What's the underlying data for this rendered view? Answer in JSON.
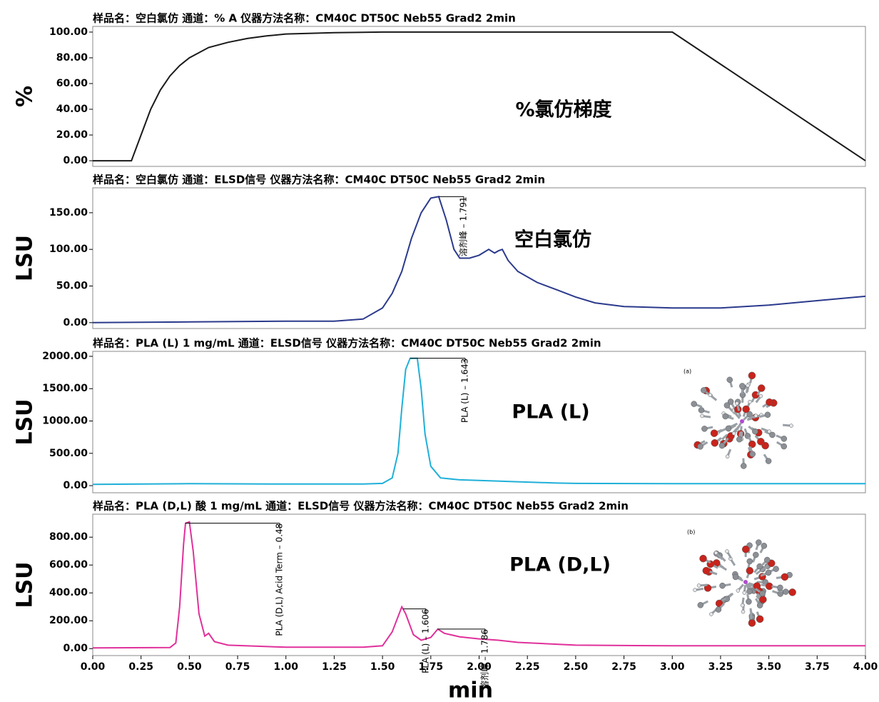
{
  "chart_data": [
    {
      "type": "line",
      "title": "样品名：空白氯仿 通道：% A 仪器方法名称：CM40C DT50C Neb55 Grad2 2min",
      "ylabel": "%",
      "label": "%氯仿梯度",
      "color": "#1a1a1a",
      "xlim": [
        0,
        4
      ],
      "ylim": [
        -4.4,
        104.4
      ],
      "yticks": [
        {
          "value": 0,
          "label": "0.00"
        },
        {
          "value": 20,
          "label": "20.00"
        },
        {
          "value": 40,
          "label": "40.00"
        },
        {
          "value": 60,
          "label": "60.00"
        },
        {
          "value": 80,
          "label": "80.00"
        },
        {
          "value": 100,
          "label": "100.00"
        }
      ],
      "x": [
        0,
        0.2,
        0.25,
        0.3,
        0.35,
        0.4,
        0.45,
        0.5,
        0.6,
        0.7,
        0.8,
        0.9,
        1.0,
        1.25,
        1.5,
        3.0,
        4.0
      ],
      "values": [
        0,
        0,
        20,
        40,
        55,
        66,
        74,
        80,
        88,
        92,
        95,
        97,
        98.5,
        99.5,
        100,
        100,
        0
      ]
    },
    {
      "type": "line",
      "title": "样品名：空白氯仿 通道：ELSD信号 仪器方法名称：CM40C DT50C Neb55 Grad2 2min",
      "ylabel": "LSU",
      "label": "空白氯仿",
      "color": "#2b3a8c",
      "xlim": [
        0,
        4
      ],
      "ylim": [
        -8,
        184
      ],
      "yticks": [
        {
          "value": 0,
          "label": "0.00"
        },
        {
          "value": 50,
          "label": "50.00"
        },
        {
          "value": 100,
          "label": "100.00"
        },
        {
          "value": 150,
          "label": "150.00"
        }
      ],
      "x": [
        0,
        0.5,
        1.0,
        1.25,
        1.4,
        1.5,
        1.55,
        1.6,
        1.65,
        1.7,
        1.75,
        1.791,
        1.83,
        1.87,
        1.9,
        1.95,
        2.0,
        2.05,
        2.08,
        2.1,
        2.12,
        2.15,
        2.2,
        2.3,
        2.4,
        2.5,
        2.6,
        2.75,
        3.0,
        3.25,
        3.5,
        3.75,
        4.0
      ],
      "values": [
        0,
        1,
        2,
        2,
        5,
        20,
        40,
        70,
        115,
        150,
        170,
        172,
        140,
        100,
        88,
        88,
        92,
        100,
        95,
        98,
        100,
        85,
        70,
        55,
        45,
        35,
        27,
        22,
        20,
        20,
        24,
        30,
        36
      ],
      "annotations": [
        {
          "text": "溶剂峰 – 1.791",
          "x": 1.791
        }
      ]
    },
    {
      "type": "line",
      "title": "样品名：PLA (L) 1 mg/mL 通道：ELSD信号 仪器方法名称：CM40C DT50C Neb55 Grad2 2min",
      "ylabel": "LSU",
      "label": "PLA (L)",
      "inset_label": "(a)",
      "color": "#1fb0d8",
      "xlim": [
        0,
        4
      ],
      "ylim": [
        -110,
        2077
      ],
      "yticks": [
        {
          "value": 0,
          "label": "0.00"
        },
        {
          "value": 500,
          "label": "500.00"
        },
        {
          "value": 1000,
          "label": "1000.00"
        },
        {
          "value": 1500,
          "label": "1500.00"
        },
        {
          "value": 2000,
          "label": "2000.00"
        }
      ],
      "x": [
        0,
        0.5,
        1.0,
        1.4,
        1.5,
        1.55,
        1.58,
        1.6,
        1.62,
        1.643,
        1.68,
        1.7,
        1.72,
        1.75,
        1.8,
        1.9,
        2.0,
        2.2,
        2.4,
        2.5,
        3.0,
        4.0
      ],
      "values": [
        20,
        30,
        25,
        25,
        35,
        120,
        500,
        1200,
        1800,
        1970,
        1970,
        1500,
        800,
        300,
        120,
        90,
        80,
        60,
        40,
        35,
        30,
        30
      ],
      "annotations": [
        {
          "text": "PLA (L) – 1.643",
          "x": 1.643
        }
      ]
    },
    {
      "type": "line",
      "title": "样品名：PLA (D,L) 酸 1 mg/mL 通道：ELSD信号 仪器方法名称：CM40C DT50C Neb55 Grad2 2min",
      "ylabel": "LSU",
      "label": "PLA (D,L)",
      "inset_label": "(b)",
      "color": "#e0309a",
      "xlim": [
        0,
        4
      ],
      "ylim": [
        -50,
        965
      ],
      "xlabel": "min",
      "yticks": [
        {
          "value": 0,
          "label": "0.00"
        },
        {
          "value": 200,
          "label": "200.00"
        },
        {
          "value": 400,
          "label": "400.00"
        },
        {
          "value": 600,
          "label": "600.00"
        },
        {
          "value": 800,
          "label": "800.00"
        }
      ],
      "xticks": [
        {
          "value": 0,
          "label": "0.00"
        },
        {
          "value": 0.25,
          "label": "0.25"
        },
        {
          "value": 0.5,
          "label": "0.50"
        },
        {
          "value": 0.75,
          "label": "0.75"
        },
        {
          "value": 1,
          "label": "1.00"
        },
        {
          "value": 1.25,
          "label": "1.25"
        },
        {
          "value": 1.5,
          "label": "1.50"
        },
        {
          "value": 1.75,
          "label": "1.75"
        },
        {
          "value": 2,
          "label": "2.00"
        },
        {
          "value": 2.25,
          "label": "2.25"
        },
        {
          "value": 2.5,
          "label": "2.50"
        },
        {
          "value": 2.75,
          "label": "2.75"
        },
        {
          "value": 3,
          "label": "3.00"
        },
        {
          "value": 3.25,
          "label": "3.25"
        },
        {
          "value": 3.5,
          "label": "3.50"
        },
        {
          "value": 3.75,
          "label": "3.75"
        },
        {
          "value": 4,
          "label": "4.00"
        }
      ],
      "x": [
        0,
        0.4,
        0.43,
        0.45,
        0.47,
        0.48,
        0.5,
        0.52,
        0.55,
        0.58,
        0.6,
        0.63,
        0.7,
        1.0,
        1.4,
        1.5,
        1.55,
        1.6,
        1.62,
        1.66,
        1.7,
        1.75,
        1.786,
        1.82,
        1.9,
        2.0,
        2.1,
        2.2,
        2.5,
        3.0,
        4.0
      ],
      "values": [
        5,
        8,
        40,
        300,
        750,
        900,
        910,
        700,
        250,
        90,
        110,
        50,
        25,
        10,
        10,
        20,
        120,
        300,
        250,
        100,
        60,
        80,
        140,
        110,
        85,
        70,
        60,
        45,
        25,
        20,
        20
      ],
      "annotations": [
        {
          "text": "PLA (D,L) Acid Term – 0.48",
          "x": 0.48
        },
        {
          "text": "PLA (L) – 1.606",
          "x": 1.606
        },
        {
          "text": "溶剂峰 – 1.786",
          "x": 1.786
        }
      ]
    }
  ]
}
